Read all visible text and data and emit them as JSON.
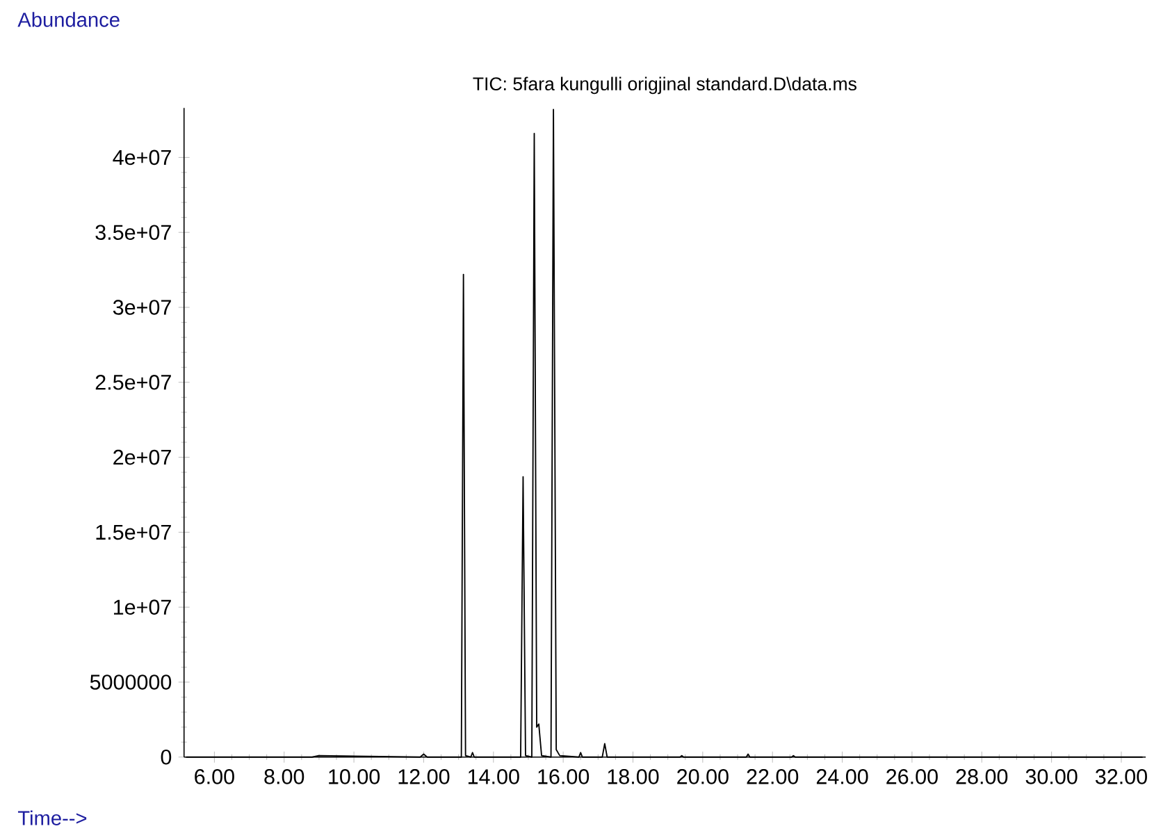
{
  "chart_data": {
    "type": "line",
    "title": "TIC: 5fara kungulli origjinal standard.D\\data.ms",
    "xlabel": "Time-->",
    "ylabel": "Abundance",
    "x": [
      5.2,
      6.0,
      7.5,
      8.8,
      9.0,
      11.9,
      12.0,
      12.1,
      13.08,
      13.14,
      13.2,
      13.35,
      13.4,
      13.45,
      14.78,
      14.85,
      14.92,
      15.1,
      15.17,
      15.24,
      15.3,
      15.38,
      15.65,
      15.72,
      15.8,
      15.9,
      16.45,
      16.5,
      16.55,
      17.12,
      17.19,
      17.26,
      19.35,
      19.4,
      19.45,
      21.25,
      21.3,
      21.35,
      22.55,
      22.6,
      22.65,
      32.6
    ],
    "series": [
      {
        "color": "#000000",
        "values": [
          0,
          0,
          0,
          0,
          100000,
          0,
          200000,
          0,
          0,
          32200000,
          100000,
          0,
          300000,
          0,
          0,
          18700000,
          100000,
          0,
          41600000,
          2000000,
          2200000,
          100000,
          0,
          43200000,
          500000,
          100000,
          0,
          300000,
          0,
          0,
          900000,
          0,
          0,
          100000,
          0,
          0,
          200000,
          0,
          0,
          100000,
          0,
          0
        ]
      }
    ],
    "xlim": [
      5.13,
      32.7
    ],
    "ylim": [
      0,
      43300000
    ],
    "xticks": [
      {
        "value": 6,
        "label": "6.00"
      },
      {
        "value": 8,
        "label": "8.00"
      },
      {
        "value": 10,
        "label": "10.00"
      },
      {
        "value": 12,
        "label": "12.00"
      },
      {
        "value": 14,
        "label": "14.00"
      },
      {
        "value": 16,
        "label": "16.00"
      },
      {
        "value": 18,
        "label": "18.00"
      },
      {
        "value": 20,
        "label": "20.00"
      },
      {
        "value": 22,
        "label": "22.00"
      },
      {
        "value": 24,
        "label": "24.00"
      },
      {
        "value": 26,
        "label": "26.00"
      },
      {
        "value": 28,
        "label": "28.00"
      },
      {
        "value": 30,
        "label": "30.00"
      },
      {
        "value": 32,
        "label": "32.00"
      }
    ],
    "yticks": [
      0,
      5000000,
      {
        "value": 10000000,
        "label": "1e+07"
      },
      {
        "value": 15000000,
        "label": "1.5e+07"
      },
      {
        "value": 20000000,
        "label": "2e+07"
      },
      {
        "value": 25000000,
        "label": "2.5e+07"
      },
      {
        "value": 30000000,
        "label": "3e+07"
      },
      {
        "value": 35000000,
        "label": "3.5e+07"
      },
      {
        "value": 40000000,
        "label": "4e+07"
      }
    ]
  }
}
